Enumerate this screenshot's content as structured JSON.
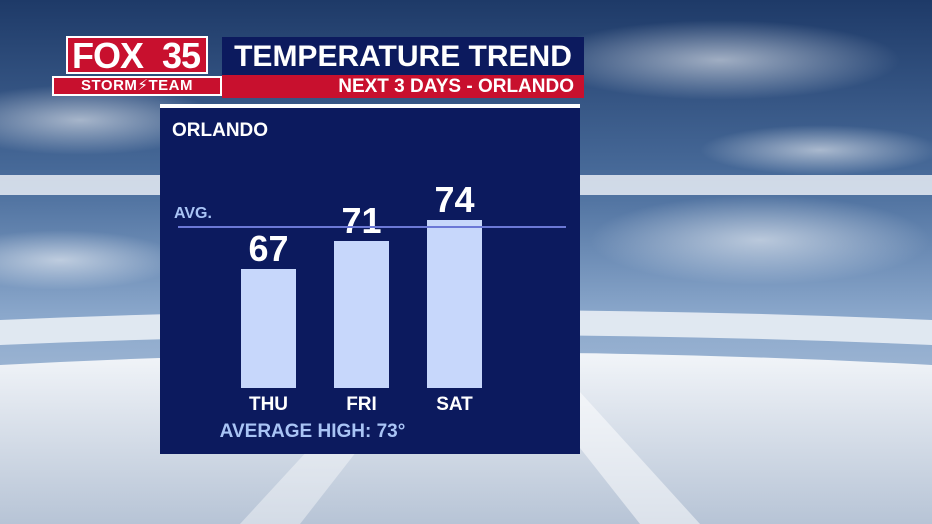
{
  "header": {
    "logo_top_left": "FOX",
    "logo_top_right": "35",
    "logo_bottom": "STORM⚡TEAM",
    "title": "TEMPERATURE TREND",
    "subtitle": "NEXT 3 DAYS - ORLANDO"
  },
  "panel": {
    "location": "ORLANDO",
    "footer": "AVERAGE HIGH: 73°"
  },
  "colors": {
    "panel_bg": "#0c1a5e",
    "bar_fill": "#c7d7fb",
    "avg_line": "#6b78d6",
    "brand_red": "#c8102e",
    "avg_label": "#a9c4f5"
  },
  "chart_data": {
    "type": "bar",
    "categories": [
      "THU",
      "FRI",
      "SAT"
    ],
    "values": [
      67,
      71,
      74
    ],
    "reference_line": {
      "label": "AVG.",
      "value": 73
    },
    "title": "",
    "xlabel": "",
    "ylabel": "",
    "ylim": [
      50,
      80
    ]
  }
}
